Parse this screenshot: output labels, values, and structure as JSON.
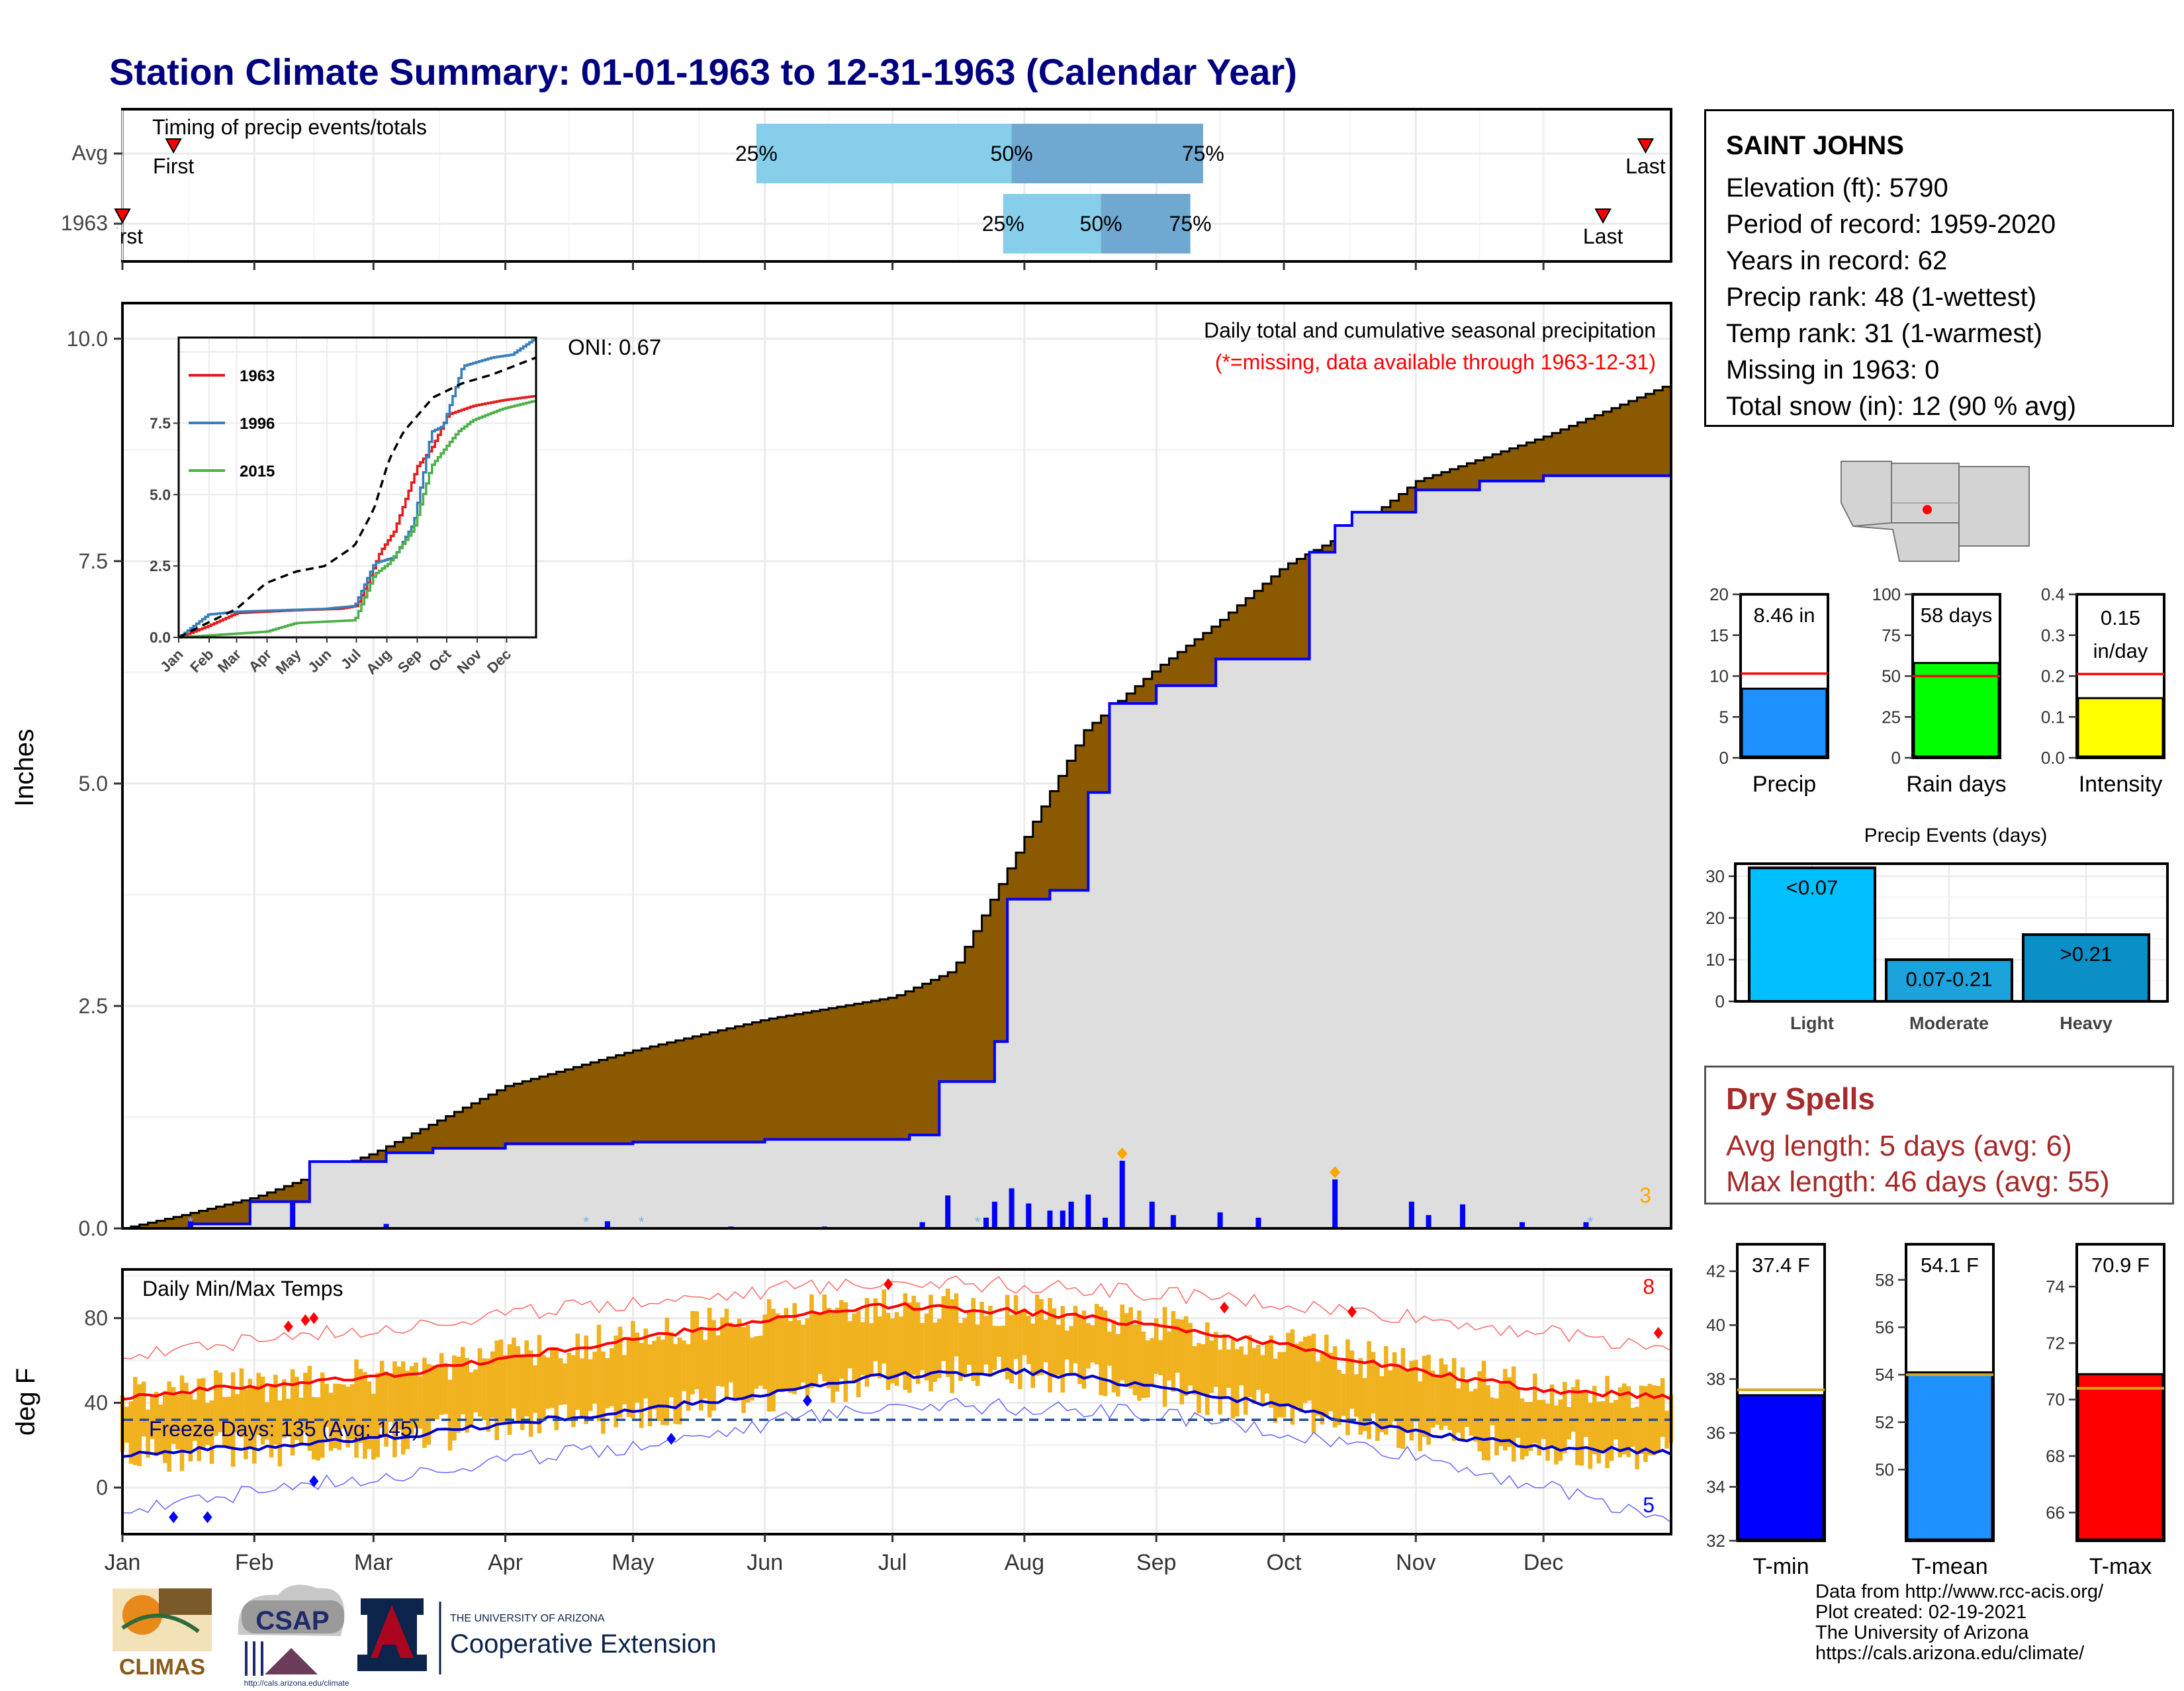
{
  "title": "Station Climate Summary: 01-01-1963 to 12-31-1963 (Calendar Year)",
  "timing": {
    "label": "Timing of precip events/totals",
    "rows": [
      {
        "name": "Avg",
        "first_label": "First",
        "first_day": 13,
        "last_label": "Last",
        "last_day": 359,
        "q25_label": "25%",
        "q25_day": 150,
        "q50_label": "50%",
        "q50_day": 210,
        "q75_label": "75%",
        "q75_day": 255
      },
      {
        "name": "1963",
        "first_label": "First",
        "first_day": 1,
        "last_label": "Last",
        "last_day": 349,
        "q25_label": "25%",
        "q25_day": 208,
        "q50_label": "50%",
        "q50_day": 231,
        "q75_label": "75%",
        "q75_day": 252
      }
    ]
  },
  "precip_panel": {
    "ylabel": "Inches",
    "yticks": [
      "0.0",
      "2.5",
      "5.0",
      "7.5",
      "10.0"
    ],
    "note": "Daily total and cumulative seasonal precipitation",
    "missing_note": "(*=missing, data available through 1963-12-31)",
    "oni_label": "ONI: 0.67",
    "count_label": "3"
  },
  "inset": {
    "yticks": [
      "0.0",
      "2.5",
      "5.0",
      "7.5"
    ],
    "months": [
      "Jan",
      "Feb",
      "Mar",
      "Apr",
      "May",
      "Jun",
      "Jul",
      "Aug",
      "Sep",
      "Oct",
      "Nov",
      "Dec"
    ],
    "legend": [
      {
        "name": "1963",
        "color": "#e41a1c"
      },
      {
        "name": "1996",
        "color": "#377eb8"
      },
      {
        "name": "2015",
        "color": "#4daf4a"
      }
    ]
  },
  "temp_panel": {
    "ylabel": "deg F",
    "title": "Daily Min/Max Temps",
    "freeze_label": "Freeze Days: 135 (Avg: 145)",
    "yticks": [
      "0",
      "40",
      "80"
    ],
    "count_high": "8",
    "count_low": "5"
  },
  "x_months": [
    "Jan",
    "Feb",
    "Mar",
    "Apr",
    "May",
    "Jun",
    "Jul",
    "Aug",
    "Sep",
    "Oct",
    "Nov",
    "Dec"
  ],
  "station": {
    "name": "SAINT JOHNS",
    "lines": [
      "Elevation (ft): 5790",
      "Period of record: 1959-2020",
      "Years in record: 62",
      "Precip rank: 48 (1-wettest)",
      "Temp rank: 31 (1-warmest)",
      "Missing in 1963: 0",
      "Total snow (in): 12 (90 % avg)"
    ]
  },
  "dry_spells": {
    "title": "Dry Spells",
    "avg_line": "Avg length: 5 days (avg: 6)",
    "max_line": "Max length: 46 days (avg: 55)"
  },
  "mini_bars": [
    {
      "label": "Precip",
      "value_label": "8.46 in",
      "value": 8.46,
      "avg": 10.3,
      "ymax": 20,
      "yticks": [
        "0",
        "5",
        "10",
        "15",
        "20"
      ],
      "color": "#1e90ff"
    },
    {
      "label": "Rain days",
      "value_label": "58 days",
      "value": 58,
      "avg": 50,
      "ymax": 100,
      "yticks": [
        "0",
        "25",
        "50",
        "75",
        "100"
      ],
      "color": "#00ff00"
    },
    {
      "label": "Intensity",
      "value_label": "0.15 in/day",
      "value_line1": "0.15",
      "value_line2": "in/day",
      "value": 0.146,
      "avg": 0.205,
      "ymax": 0.4,
      "yticks": [
        "0.0",
        "0.1",
        "0.2",
        "0.3",
        "0.4"
      ],
      "color": "#ffff00"
    }
  ],
  "events": {
    "title": "Precip Events (days)",
    "yticks": [
      "0",
      "10",
      "20",
      "30"
    ],
    "bars": [
      {
        "label": "Light",
        "value_label": "<0.07",
        "value": 32,
        "color": "#00bfff"
      },
      {
        "label": "Moderate",
        "value_label": "0.07-0.21",
        "value": 10,
        "color": "#1ca3dc"
      },
      {
        "label": "Heavy",
        "value_label": ">0.21",
        "value": 16,
        "color": "#0a8fc7"
      }
    ]
  },
  "temp_bars": [
    {
      "label": "T-min",
      "value_label": "37.4 F",
      "value": 37.4,
      "avg": 37.6,
      "ylim": [
        32,
        43
      ],
      "yticks": [
        "32",
        "34",
        "36",
        "38",
        "40",
        "42"
      ],
      "color": "#0000ff"
    },
    {
      "label": "T-mean",
      "value_label": "54.1 F",
      "value": 54.1,
      "avg": 54.0,
      "ylim": [
        47,
        59.5
      ],
      "yticks": [
        "50",
        "52",
        "54",
        "56",
        "58"
      ],
      "color": "#1e90ff"
    },
    {
      "label": "T-max",
      "value_label": "70.9 F",
      "value": 70.9,
      "avg": 70.4,
      "ylim": [
        65,
        75.5
      ],
      "yticks": [
        "66",
        "68",
        "70",
        "72",
        "74"
      ],
      "color": "#ff0000"
    }
  ],
  "source_lines": [
    "Data from http://www.rcc-acis.org/",
    "Plot created: 02-19-2021",
    "The University of Arizona",
    "https://cals.arizona.edu/climate/"
  ],
  "logos": {
    "climas": "CLIMAS",
    "csap": "CSAP",
    "csap_url": "http://cals.arizona.edu/climate",
    "ua_small": "THE UNIVERSITY OF ARIZONA",
    "ua_big": "Cooperative Extension"
  },
  "chart_data": [
    {
      "type": "area",
      "title": "Daily total and cumulative seasonal precipitation",
      "ylabel": "Inches",
      "ylim": [
        0,
        10.4
      ],
      "series": [
        {
          "name": "avg_cumulative",
          "x_day": [
            1,
            15,
            32,
            60,
            91,
            121,
            152,
            182,
            196,
            213,
            227,
            244,
            258,
            274,
            290,
            305,
            335,
            365
          ],
          "values": [
            0,
            0.15,
            0.35,
            0.85,
            1.6,
            2.0,
            2.35,
            2.6,
            2.9,
            4.4,
            5.6,
            6.3,
            6.8,
            7.45,
            7.85,
            8.4,
            8.9,
            9.5
          ]
        },
        {
          "name": "1963_cumulative",
          "x_day": [
            1,
            17,
            31,
            45,
            63,
            74,
            91,
            121,
            152,
            186,
            193,
            206,
            209,
            219,
            228,
            233,
            244,
            258,
            280,
            286,
            290,
            305,
            320,
            335,
            365
          ],
          "values": [
            0,
            0.05,
            0.3,
            0.75,
            0.85,
            0.9,
            0.95,
            0.97,
            1.0,
            1.05,
            1.65,
            2.1,
            3.7,
            3.8,
            4.9,
            5.9,
            6.1,
            6.4,
            7.6,
            7.9,
            8.05,
            8.3,
            8.4,
            8.46,
            8.46
          ]
        },
        {
          "name": "daily_1963",
          "x_day": [
            17,
            41,
            63,
            115,
            144,
            166,
            189,
            195,
            204,
            206,
            210,
            214,
            219,
            222,
            224,
            228,
            232,
            236,
            243,
            248,
            259,
            268,
            286,
            304,
            308,
            316,
            330,
            345
          ],
          "values": [
            0.08,
            0.3,
            0.05,
            0.08,
            0.02,
            0.02,
            0.07,
            0.37,
            0.12,
            0.3,
            0.45,
            0.28,
            0.2,
            0.2,
            0.3,
            0.38,
            0.12,
            0.76,
            0.3,
            0.15,
            0.18,
            0.12,
            0.55,
            0.3,
            0.15,
            0.27,
            0.07,
            0.07
          ]
        }
      ]
    },
    {
      "type": "line",
      "title": "",
      "ylim": [
        0,
        10.5
      ],
      "series": [
        {
          "name": "1963",
          "x_day": [
            1,
            31,
            60,
            120,
            165,
            182,
            194,
            206,
            220,
            244,
            258,
            275,
            300,
            330,
            365
          ],
          "values": [
            0,
            0.4,
            0.85,
            0.95,
            1.0,
            1.1,
            2.0,
            3.0,
            3.7,
            6.0,
            6.6,
            7.8,
            8.1,
            8.3,
            8.46
          ]
        },
        {
          "name": "1996",
          "x_day": [
            1,
            31,
            60,
            150,
            180,
            200,
            220,
            240,
            258,
            270,
            290,
            320,
            340,
            365
          ],
          "values": [
            0,
            0.8,
            0.9,
            1.0,
            1.1,
            2.6,
            2.8,
            4.0,
            7.2,
            7.4,
            9.5,
            9.8,
            9.9,
            10.5
          ]
        },
        {
          "name": "2015",
          "x_day": [
            1,
            90,
            120,
            180,
            200,
            215,
            240,
            258,
            285,
            300,
            330,
            365
          ],
          "values": [
            0,
            0.2,
            0.5,
            0.6,
            2.2,
            2.6,
            3.8,
            6.0,
            7.2,
            7.6,
            8.0,
            8.3
          ]
        },
        {
          "name": "avg",
          "x_day": [
            1,
            30,
            60,
            90,
            120,
            150,
            180,
            200,
            215,
            230,
            260,
            290,
            320,
            350,
            365
          ],
          "values": [
            0,
            0.5,
            1.0,
            1.9,
            2.3,
            2.5,
            3.2,
            4.5,
            6.2,
            7.2,
            8.4,
            8.9,
            9.2,
            9.6,
            9.8
          ]
        }
      ]
    },
    {
      "type": "bar",
      "title": "Daily Min/Max Temps",
      "ylabel": "deg F",
      "ylim": [
        -22,
        103
      ],
      "series": [
        {
          "name": "avg_max",
          "x_day": [
            1,
            32,
            60,
            91,
            121,
            152,
            182,
            213,
            244,
            274,
            305,
            335,
            365
          ],
          "values": [
            43,
            48,
            52,
            61,
            70,
            79,
            86,
            83,
            77,
            67,
            55,
            46,
            43
          ]
        },
        {
          "name": "avg_min",
          "x_day": [
            1,
            32,
            60,
            91,
            121,
            152,
            182,
            213,
            244,
            274,
            305,
            335,
            365
          ],
          "values": [
            16,
            19,
            23,
            30,
            36,
            44,
            53,
            55,
            48,
            38,
            26,
            19,
            17
          ]
        },
        {
          "name": "record_max",
          "x_day": [
            1,
            60,
            121,
            182,
            244,
            305,
            365
          ],
          "values": [
            63,
            75,
            88,
            98,
            92,
            80,
            66
          ]
        },
        {
          "name": "record_min",
          "x_day": [
            1,
            60,
            121,
            182,
            244,
            305,
            335,
            365
          ],
          "values": [
            -10,
            5,
            20,
            40,
            35,
            15,
            0,
            -15
          ]
        },
        {
          "name": "freeze_line",
          "values": [
            32
          ]
        }
      ]
    }
  ]
}
